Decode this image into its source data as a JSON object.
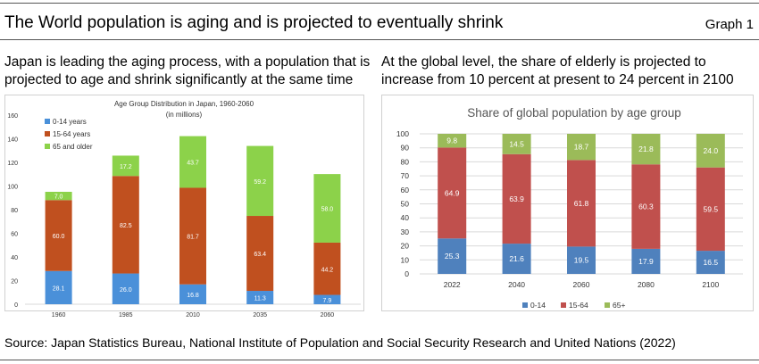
{
  "page": {
    "title": "The World population is aging and is projected to eventually shrink",
    "graph_label": "Graph 1",
    "left_text": "Japan is leading the aging process, with a population that is projected to age and shrink significantly at the same time",
    "right_text": "At the global level, the share of elderly is projected to increase from 10 percent at present to 24 percent in 2100",
    "source": "Source: Japan Statistics Bureau, National Institute of Population and Social Security Research and United Nations (2022)"
  },
  "chart_data": [
    {
      "type": "bar",
      "stacked": true,
      "title": "Age Group Distribution in Japan, 1960-2060",
      "subtitle": "(in millions)",
      "categories": [
        "1960",
        "1985",
        "2010",
        "2035",
        "2060"
      ],
      "series": [
        {
          "name": "0-14 years",
          "color": "#4a90d9",
          "values": [
            28.1,
            26.0,
            16.8,
            11.3,
            7.9
          ]
        },
        {
          "name": "15-64 years",
          "color": "#c0501f",
          "values": [
            60.0,
            82.5,
            81.7,
            63.4,
            44.2
          ]
        },
        {
          "name": "65 and older",
          "color": "#8cd24a",
          "values": [
            7.0,
            17.2,
            43.7,
            59.2,
            58.0
          ]
        }
      ],
      "ylim": [
        0,
        160
      ],
      "yticks": [
        0,
        20,
        40,
        60,
        80,
        100,
        120,
        140,
        160
      ],
      "legend_position": "top-left",
      "grid": false
    },
    {
      "type": "bar",
      "stacked": true,
      "title": "Share of global population by age group",
      "categories": [
        "2022",
        "2040",
        "2060",
        "2080",
        "2100"
      ],
      "series": [
        {
          "name": "0-14",
          "color": "#4f81bd",
          "values": [
            25.3,
            21.6,
            19.5,
            17.9,
            16.5
          ]
        },
        {
          "name": "15-64",
          "color": "#c0504d",
          "values": [
            64.9,
            63.9,
            61.8,
            60.3,
            59.5
          ]
        },
        {
          "name": "65+",
          "color": "#9bbb59",
          "values": [
            9.8,
            14.5,
            18.7,
            21.8,
            24.0
          ]
        }
      ],
      "ylim": [
        0,
        100
      ],
      "yticks": [
        0,
        10,
        20,
        30,
        40,
        50,
        60,
        70,
        80,
        90,
        100
      ],
      "legend_position": "bottom",
      "grid": true
    }
  ]
}
